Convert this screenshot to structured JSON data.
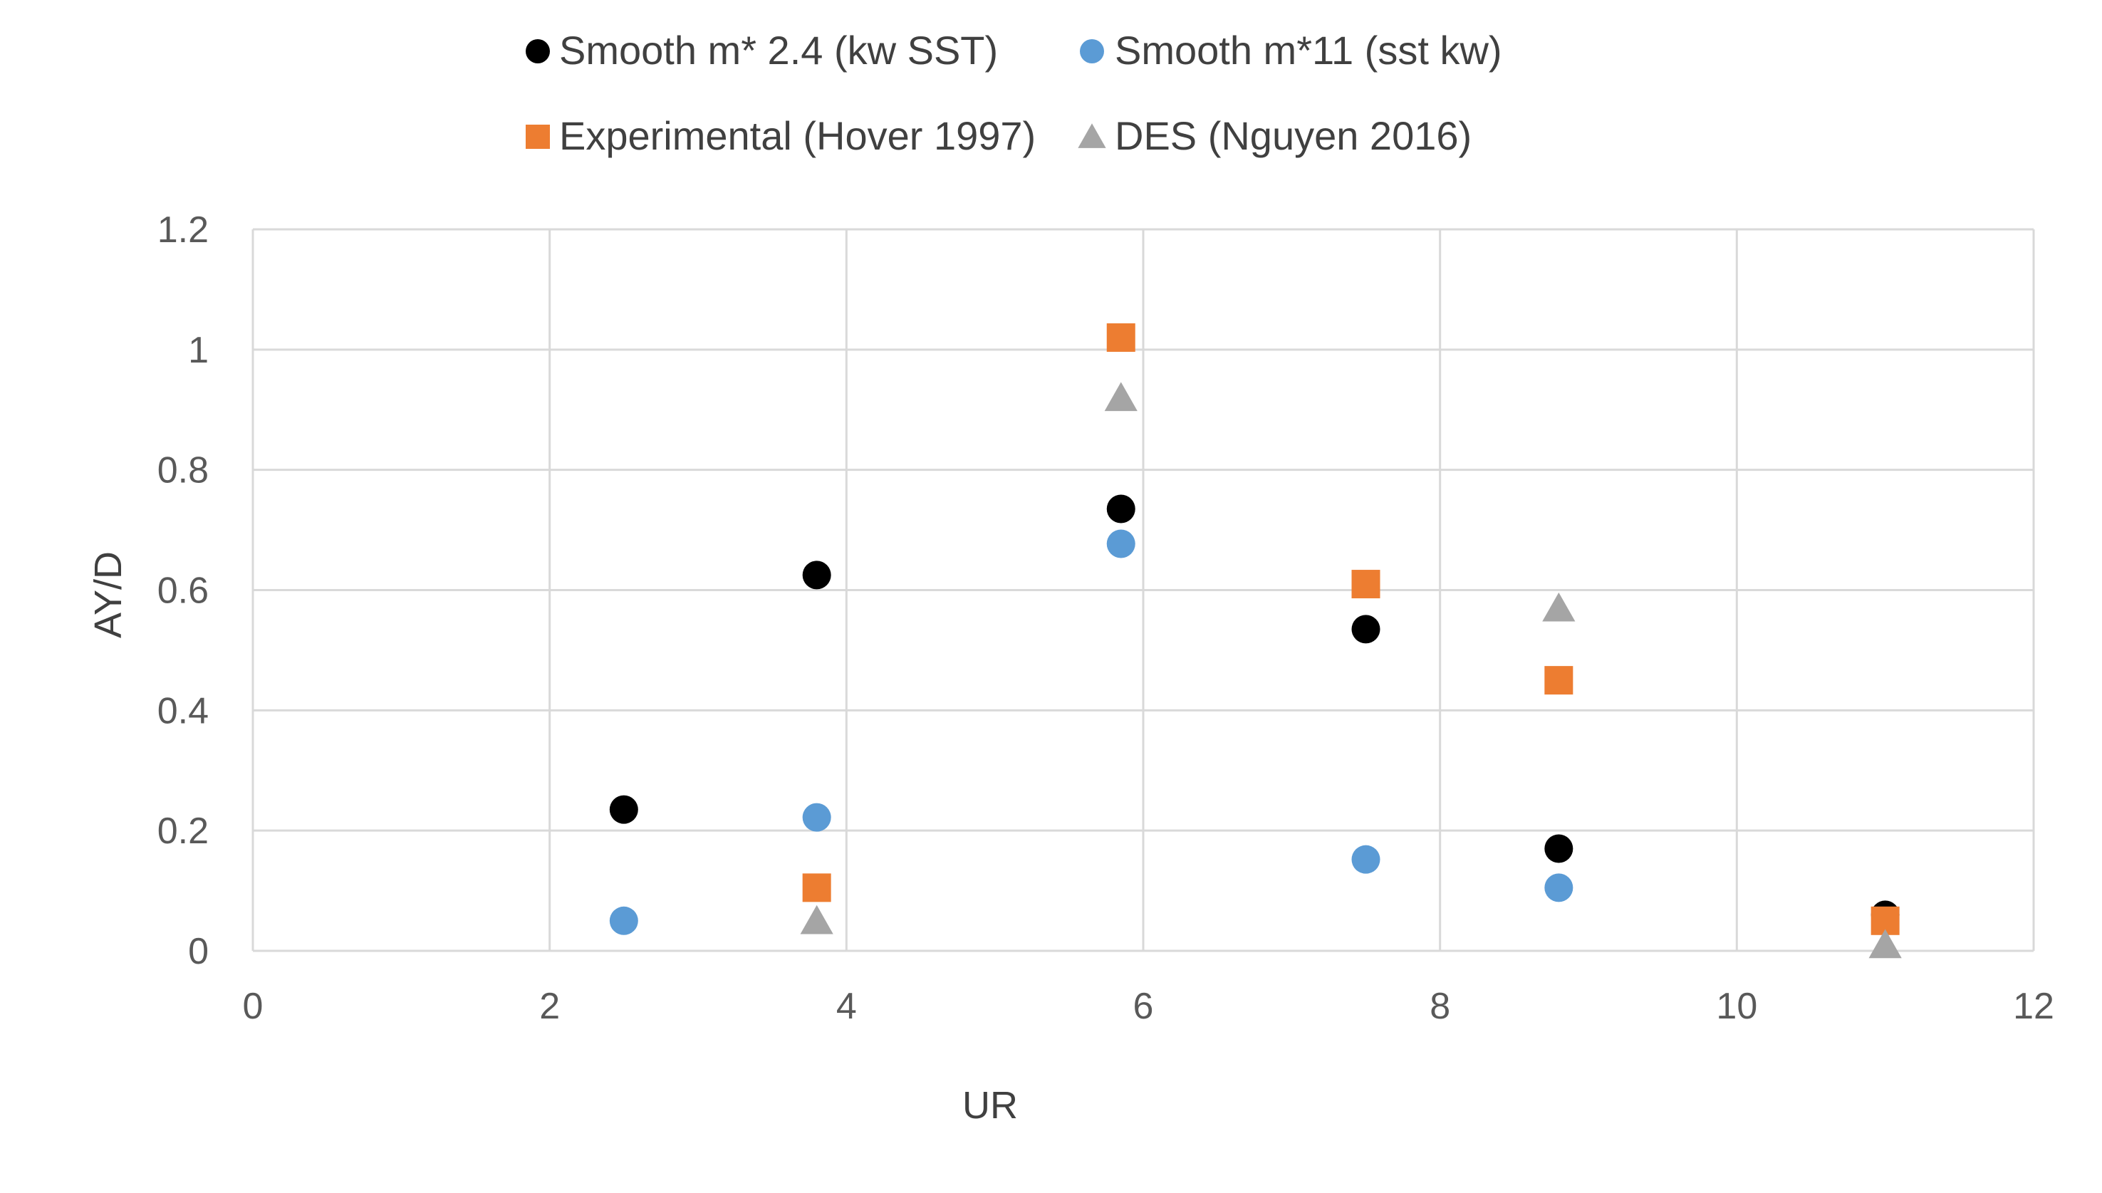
{
  "chart_data": {
    "type": "scatter",
    "xlabel": "UR",
    "ylabel": "AY/D",
    "xlim": [
      0,
      12
    ],
    "ylim": [
      0,
      1.2
    ],
    "x_ticks": [
      0,
      2,
      4,
      6,
      8,
      10,
      12
    ],
    "y_ticks": [
      0,
      0.2,
      0.4,
      0.6,
      0.8,
      1,
      1.2
    ],
    "x_tick_labels": [
      "0",
      "2",
      "4",
      "6",
      "8",
      "10",
      "12"
    ],
    "y_tick_labels": [
      "0",
      "0.2",
      "0.4",
      "0.6",
      "0.8",
      "1",
      "1.2"
    ],
    "grid": true,
    "legend_position": "top",
    "series": [
      {
        "name": "Smooth m* 2.4 (kw SST)",
        "marker": "circle",
        "color": "#000000",
        "points": [
          {
            "x": 2.5,
            "y": 0.235
          },
          {
            "x": 3.8,
            "y": 0.625
          },
          {
            "x": 5.85,
            "y": 0.735
          },
          {
            "x": 7.5,
            "y": 0.535
          },
          {
            "x": 8.8,
            "y": 0.17
          },
          {
            "x": 11.0,
            "y": 0.06
          }
        ]
      },
      {
        "name": "Smooth m*11 (sst kw)",
        "marker": "circle",
        "color": "#5b9bd5",
        "points": [
          {
            "x": 2.5,
            "y": 0.05
          },
          {
            "x": 3.8,
            "y": 0.222
          },
          {
            "x": 5.85,
            "y": 0.677
          },
          {
            "x": 7.5,
            "y": 0.152
          },
          {
            "x": 8.8,
            "y": 0.105
          }
        ]
      },
      {
        "name": "Experimental (Hover 1997)",
        "marker": "square",
        "color": "#ed7d31",
        "points": [
          {
            "x": 3.8,
            "y": 0.105
          },
          {
            "x": 5.85,
            "y": 1.02
          },
          {
            "x": 7.5,
            "y": 0.61
          },
          {
            "x": 8.8,
            "y": 0.45
          },
          {
            "x": 11.0,
            "y": 0.05
          }
        ]
      },
      {
        "name": "DES (Nguyen 2016)",
        "marker": "triangle",
        "color": "#a5a5a5",
        "points": [
          {
            "x": 3.8,
            "y": 0.05
          },
          {
            "x": 5.85,
            "y": 0.92
          },
          {
            "x": 8.8,
            "y": 0.57
          },
          {
            "x": 11.0,
            "y": 0.01
          }
        ]
      }
    ]
  }
}
